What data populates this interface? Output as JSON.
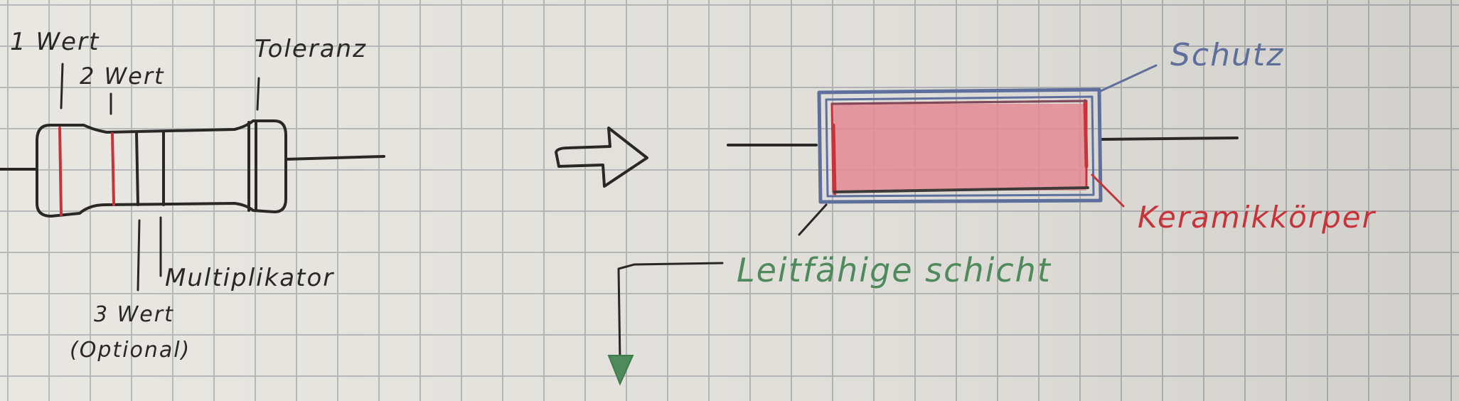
{
  "colors": {
    "ink": "#2a2826",
    "red": "#c6333a",
    "blue": "#5f6f9c",
    "green": "#4f8a5d",
    "fill_pink": "#e48a93"
  },
  "labels": {
    "wert1": "1 Wert",
    "wert2": "2 Wert",
    "toleranz": "Toleranz",
    "multiplikator": "Multiplikator",
    "wert3_line1": "3 Wert",
    "wert3_line2": "(Optional)",
    "schutz": "Schutz",
    "keramikkoerper": "Keramikkörper",
    "leitfaehige_schicht": "Leitfähige schicht"
  }
}
